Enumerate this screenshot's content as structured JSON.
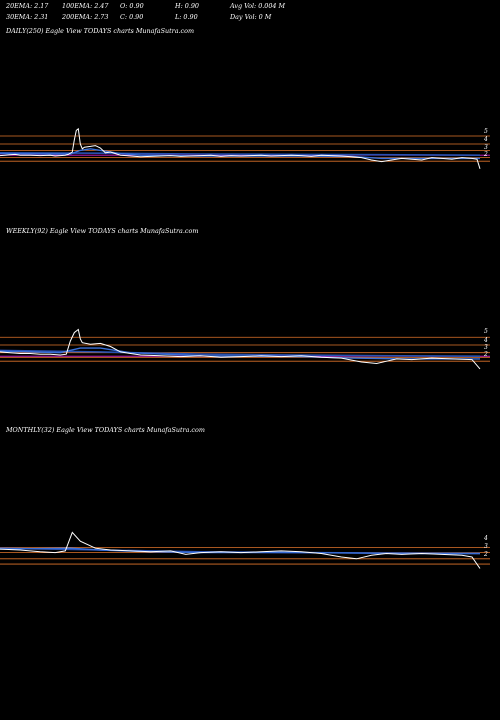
{
  "header": {
    "row1": {
      "ema20": "20EMA: 2.17",
      "ema100": "100EMA: 2.47",
      "open": "O: 0.90",
      "high": "H: 0.90",
      "avgvol": "Avg Vol: 0.004 M"
    },
    "row2": {
      "ema30": "30EMA: 2.31",
      "ema200": "200EMA: 2.73",
      "close": "C: 0.90",
      "low": "L: 0.90",
      "dayvol": "Day Vol: 0  M"
    }
  },
  "colors": {
    "background": "#000000",
    "price": "#ffffff",
    "ema": "#3a6fd8",
    "ema_long": "#2850b0",
    "resistance": "#e0742a",
    "level_magenta": "#d020d0"
  },
  "chart_data": [
    {
      "type": "line",
      "panel_label": "DAILY(250) Eagle   View  TODAYS charts MunafaSutra.com",
      "tick_labels": [
        "5",
        "4",
        "3",
        "2"
      ],
      "price": [
        [
          0,
          2.55
        ],
        [
          5,
          2.6
        ],
        [
          10,
          2.65
        ],
        [
          15,
          2.7
        ],
        [
          20,
          2.6
        ],
        [
          30,
          2.6
        ],
        [
          40,
          2.55
        ],
        [
          50,
          2.6
        ],
        [
          55,
          2.5
        ],
        [
          60,
          2.55
        ],
        [
          65,
          2.6
        ],
        [
          68,
          2.7
        ],
        [
          72,
          3.0
        ],
        [
          74,
          4.5
        ],
        [
          76,
          5.7
        ],
        [
          78,
          5.9
        ],
        [
          80,
          4.0
        ],
        [
          82,
          3.4
        ],
        [
          84,
          3.6
        ],
        [
          90,
          3.7
        ],
        [
          95,
          3.8
        ],
        [
          100,
          3.5
        ],
        [
          105,
          2.9
        ],
        [
          110,
          3.0
        ],
        [
          120,
          2.6
        ],
        [
          130,
          2.5
        ],
        [
          140,
          2.4
        ],
        [
          150,
          2.45
        ],
        [
          160,
          2.5
        ],
        [
          170,
          2.55
        ],
        [
          180,
          2.45
        ],
        [
          190,
          2.5
        ],
        [
          200,
          2.55
        ],
        [
          210,
          2.6
        ],
        [
          220,
          2.45
        ],
        [
          230,
          2.55
        ],
        [
          240,
          2.5
        ],
        [
          250,
          2.55
        ],
        [
          260,
          2.6
        ],
        [
          270,
          2.5
        ],
        [
          280,
          2.55
        ],
        [
          290,
          2.6
        ],
        [
          300,
          2.55
        ],
        [
          310,
          2.45
        ],
        [
          320,
          2.6
        ],
        [
          330,
          2.55
        ],
        [
          340,
          2.5
        ],
        [
          350,
          2.4
        ],
        [
          360,
          2.3
        ],
        [
          370,
          2.0
        ],
        [
          380,
          1.8
        ],
        [
          390,
          2.0
        ],
        [
          400,
          2.2
        ],
        [
          410,
          2.1
        ],
        [
          420,
          2.0
        ],
        [
          430,
          2.3
        ],
        [
          440,
          2.2
        ],
        [
          450,
          2.1
        ],
        [
          460,
          2.3
        ],
        [
          470,
          2.2
        ],
        [
          475,
          2.1
        ],
        [
          478,
          0.9
        ]
      ],
      "ema_short": [
        [
          0,
          2.8
        ],
        [
          50,
          2.75
        ],
        [
          70,
          2.75
        ],
        [
          80,
          3.2
        ],
        [
          90,
          3.4
        ],
        [
          100,
          3.2
        ],
        [
          120,
          2.8
        ],
        [
          140,
          2.6
        ],
        [
          200,
          2.5
        ],
        [
          250,
          2.5
        ],
        [
          300,
          2.5
        ],
        [
          350,
          2.45
        ],
        [
          380,
          2.2
        ],
        [
          420,
          2.2
        ],
        [
          478,
          2.2
        ]
      ],
      "ema_long": [
        [
          0,
          2.9
        ],
        [
          100,
          2.85
        ],
        [
          200,
          2.75
        ],
        [
          300,
          2.7
        ],
        [
          400,
          2.65
        ],
        [
          478,
          2.6
        ]
      ],
      "levels": [
        {
          "value": 5.0,
          "color": "#e0742a"
        },
        {
          "value": 4.0,
          "color": "#e0742a"
        },
        {
          "value": 3.2,
          "color": "#e0742a"
        },
        {
          "value": 2.3,
          "color": "#e0742a"
        },
        {
          "value": 1.85,
          "color": "#e0742a"
        },
        {
          "value": 2.6,
          "color": "#d020d0"
        }
      ]
    },
    {
      "type": "line",
      "panel_label": "WEEKLY(92) Eagle   View  TODAYS charts MunafaSutra.com",
      "tick_labels": [
        "5",
        "4",
        "3",
        "2"
      ],
      "price": [
        [
          0,
          3.1
        ],
        [
          10,
          3.0
        ],
        [
          20,
          2.9
        ],
        [
          30,
          2.9
        ],
        [
          40,
          2.8
        ],
        [
          50,
          2.8
        ],
        [
          60,
          2.7
        ],
        [
          66,
          2.8
        ],
        [
          70,
          4.5
        ],
        [
          74,
          5.6
        ],
        [
          78,
          6.0
        ],
        [
          80,
          4.8
        ],
        [
          82,
          4.3
        ],
        [
          90,
          4.1
        ],
        [
          100,
          4.2
        ],
        [
          110,
          3.8
        ],
        [
          120,
          3.1
        ],
        [
          130,
          2.9
        ],
        [
          140,
          2.7
        ],
        [
          160,
          2.6
        ],
        [
          180,
          2.5
        ],
        [
          200,
          2.6
        ],
        [
          220,
          2.4
        ],
        [
          240,
          2.5
        ],
        [
          260,
          2.6
        ],
        [
          280,
          2.5
        ],
        [
          300,
          2.6
        ],
        [
          320,
          2.4
        ],
        [
          340,
          2.3
        ],
        [
          360,
          1.8
        ],
        [
          375,
          1.6
        ],
        [
          385,
          1.9
        ],
        [
          395,
          2.2
        ],
        [
          410,
          2.1
        ],
        [
          430,
          2.3
        ],
        [
          450,
          2.2
        ],
        [
          470,
          2.1
        ],
        [
          478,
          0.9
        ]
      ],
      "ema_short": [
        [
          0,
          3.2
        ],
        [
          60,
          3.0
        ],
        [
          80,
          3.6
        ],
        [
          100,
          3.6
        ],
        [
          130,
          3.0
        ],
        [
          200,
          2.6
        ],
        [
          300,
          2.5
        ],
        [
          350,
          2.3
        ],
        [
          400,
          2.2
        ],
        [
          478,
          2.2
        ]
      ],
      "ema_long": [
        [
          0,
          3.3
        ],
        [
          100,
          3.1
        ],
        [
          200,
          2.8
        ],
        [
          300,
          2.7
        ],
        [
          400,
          2.6
        ],
        [
          478,
          2.55
        ]
      ],
      "levels": [
        {
          "value": 5.0,
          "color": "#e0742a"
        },
        {
          "value": 4.0,
          "color": "#e0742a"
        },
        {
          "value": 3.0,
          "color": "#e0742a"
        },
        {
          "value": 2.4,
          "color": "#e0742a"
        },
        {
          "value": 1.9,
          "color": "#e0742a"
        },
        {
          "value": 2.55,
          "color": "#d020d0"
        }
      ]
    },
    {
      "type": "line",
      "panel_label": "MONTHLY(32) Eagle   View  TODAYS charts MunafaSutra.com",
      "tick_labels": [
        "4",
        "3",
        "2"
      ],
      "price": [
        [
          0,
          3.1
        ],
        [
          20,
          3.0
        ],
        [
          40,
          2.8
        ],
        [
          55,
          2.7
        ],
        [
          65,
          2.9
        ],
        [
          72,
          5.0
        ],
        [
          80,
          4.0
        ],
        [
          95,
          3.2
        ],
        [
          110,
          3.0
        ],
        [
          130,
          2.9
        ],
        [
          150,
          2.8
        ],
        [
          170,
          2.9
        ],
        [
          185,
          2.5
        ],
        [
          200,
          2.7
        ],
        [
          220,
          2.8
        ],
        [
          240,
          2.7
        ],
        [
          260,
          2.8
        ],
        [
          280,
          2.9
        ],
        [
          300,
          2.8
        ],
        [
          320,
          2.6
        ],
        [
          340,
          2.2
        ],
        [
          355,
          2.0
        ],
        [
          370,
          2.4
        ],
        [
          385,
          2.6
        ],
        [
          400,
          2.5
        ],
        [
          420,
          2.6
        ],
        [
          440,
          2.5
        ],
        [
          460,
          2.4
        ],
        [
          470,
          2.2
        ],
        [
          478,
          0.9
        ]
      ],
      "ema_short": [
        [
          0,
          3.1
        ],
        [
          70,
          3.2
        ],
        [
          100,
          3.0
        ],
        [
          150,
          2.8
        ],
        [
          200,
          2.7
        ],
        [
          300,
          2.7
        ],
        [
          400,
          2.6
        ],
        [
          478,
          2.6
        ]
      ],
      "ema_long": [
        [
          0,
          3.2
        ],
        [
          100,
          3.0
        ],
        [
          200,
          2.8
        ],
        [
          300,
          2.7
        ],
        [
          400,
          2.65
        ],
        [
          478,
          2.6
        ]
      ],
      "levels": [
        {
          "value": 3.3,
          "color": "#e0742a"
        },
        {
          "value": 2.7,
          "color": "#e0742a"
        },
        {
          "value": 2.0,
          "color": "#e0742a"
        },
        {
          "value": 1.4,
          "color": "#e0742a"
        }
      ]
    }
  ]
}
